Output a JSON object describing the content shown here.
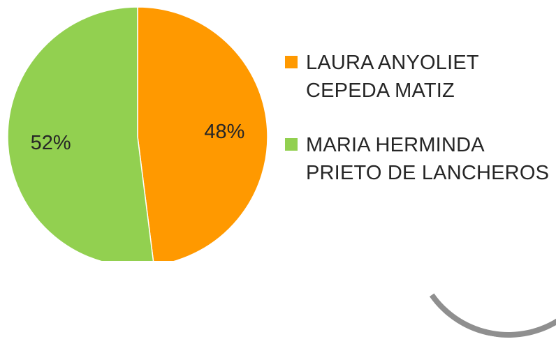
{
  "chart_data": {
    "type": "pie",
    "title": "",
    "categories": [
      "LAURA ANYOLIET CEPEDA MATIZ",
      "MARIA HERMINDA PRIETO DE LANCHEROS"
    ],
    "values": [
      48,
      52
    ],
    "value_labels": [
      "48%",
      "52%"
    ],
    "colors": [
      "#FF9900",
      "#92D050"
    ],
    "start": "12 o'clock, clockwise",
    "legend": {
      "placement": "right",
      "entries": [
        {
          "lines": [
            "LAURA ANYOLIET",
            "CEPEDA MATIZ"
          ],
          "color": "#FF9900"
        },
        {
          "lines": [
            "MARIA HERMINDA",
            "PRIETO DE LANCHEROS"
          ],
          "color": "#92D050"
        }
      ]
    }
  }
}
